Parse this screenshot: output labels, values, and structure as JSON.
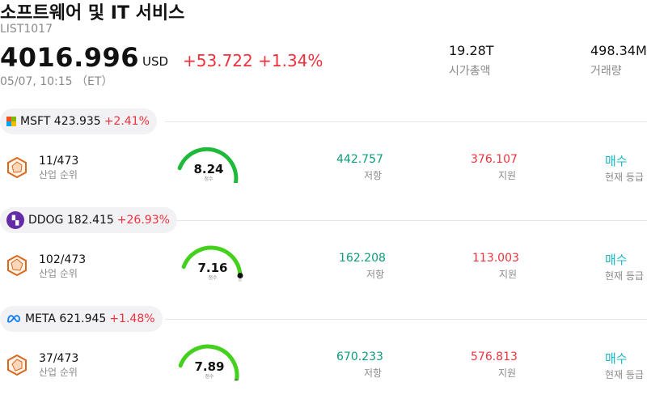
{
  "header": {
    "title": "소프트웨어 및 IT 서비스",
    "code": "LIST1017",
    "price": "4016.996",
    "currency": "USD",
    "change": "+53.722",
    "change_pct": "+1.34%",
    "timestamp": "05/07, 10:15 （ET）",
    "market_cap_value": "19.28T",
    "market_cap_label": "시가총액",
    "volume_value": "498.34M",
    "volume_label": "거래량"
  },
  "colors": {
    "up": "#f0313c",
    "resistance": "#0c9b7b",
    "signal": "#1ab8c2",
    "gauge_dark": "#1fba3a",
    "gauge_bright": "#43d11d",
    "gauge_track": "#dfe0e6"
  },
  "stocks": [
    {
      "ticker": "MSFT",
      "price": "423.935",
      "change_pct": "+2.41%",
      "logo_icon": "microsoft-logo-icon",
      "rank": "11/473",
      "rank_label": "산업 순위",
      "score": "8.24",
      "score_fraction": 0.824,
      "score_label": "점수",
      "resistance": "442.757",
      "resistance_label": "저항",
      "support": "376.107",
      "support_label": "지원",
      "signal": "매수",
      "signal_label": "현재 등급"
    },
    {
      "ticker": "DDOG",
      "price": "182.415",
      "change_pct": "+26.93%",
      "logo_icon": "datadog-logo-icon",
      "rank": "102/473",
      "rank_label": "산업 순위",
      "score": "7.16",
      "score_fraction": 0.716,
      "score_label": "점수",
      "resistance": "162.208",
      "resistance_label": "저항",
      "support": "113.003",
      "support_label": "지원",
      "signal": "매수",
      "signal_label": "현재 등급"
    },
    {
      "ticker": "META",
      "price": "621.945",
      "change_pct": "+1.48%",
      "logo_icon": "meta-logo-icon",
      "rank": "37/473",
      "rank_label": "산업 순위",
      "score": "7.89",
      "score_fraction": 0.789,
      "score_label": "점수",
      "resistance": "670.233",
      "resistance_label": "저항",
      "support": "576.813",
      "support_label": "지원",
      "signal": "매수",
      "signal_label": "현재 등급"
    }
  ]
}
